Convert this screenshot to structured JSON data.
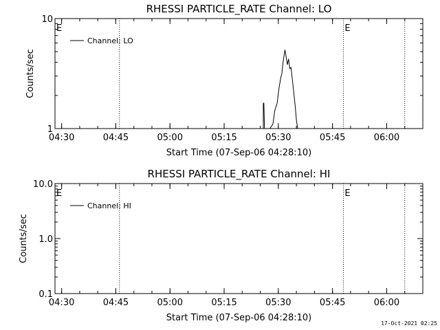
{
  "footer": {
    "timestamp": "17-Oct-2021 02:25"
  },
  "chart_data": [
    {
      "type": "line",
      "title": "RHESSI PARTICLE_RATE Channel: LO",
      "xlabel": "Start Time (07-Sep-06 04:28:10)",
      "ylabel": "Counts/sec",
      "y_scale": "log",
      "ylim": [
        1,
        10
      ],
      "x_ticks": [
        "04:30",
        "04:45",
        "05:00",
        "05:15",
        "05:30",
        "05:45",
        "06:00"
      ],
      "y_ticks": [
        "1",
        "10"
      ],
      "legend": {
        "entries": [
          "Channel: LO"
        ],
        "placement": "top-left"
      },
      "markers": [
        {
          "time": "04:46",
          "label": ""
        },
        {
          "time": "05:48",
          "label": ""
        },
        {
          "time": "06:05",
          "label": ""
        }
      ],
      "edge_labels": [
        "E",
        "E"
      ],
      "series": [
        {
          "name": "Channel: LO",
          "points": [
            [
              "05:25:50",
              1
            ],
            [
              "05:25:50",
              1.7
            ],
            [
              "05:26:00",
              1.7
            ],
            [
              "05:26:10",
              1
            ],
            [
              "05:27:40",
              1
            ],
            [
              "05:28:30",
              1.1
            ],
            [
              "05:29:00",
              1.45
            ],
            [
              "05:29:40",
              1.7
            ],
            [
              "05:30:10",
              2.3
            ],
            [
              "05:30:40",
              2.9
            ],
            [
              "05:31:00",
              3.2
            ],
            [
              "05:31:10",
              3.7
            ],
            [
              "05:31:30",
              4.4
            ],
            [
              "05:31:50",
              5.2
            ],
            [
              "05:32:10",
              4.5
            ],
            [
              "05:32:30",
              3.8
            ],
            [
              "05:32:50",
              4.3
            ],
            [
              "05:33:10",
              3.5
            ],
            [
              "05:33:30",
              3.6
            ],
            [
              "05:33:50",
              2.9
            ],
            [
              "05:34:10",
              2.3
            ],
            [
              "05:34:40",
              1.6
            ],
            [
              "05:35:00",
              1.2
            ],
            [
              "05:35:20",
              1
            ]
          ]
        }
      ]
    },
    {
      "type": "line",
      "title": "RHESSI PARTICLE_RATE Channel: HI",
      "xlabel": "Start Time (07-Sep-06 04:28:10)",
      "ylabel": "Counts/sec",
      "y_scale": "log",
      "ylim": [
        0.1,
        10
      ],
      "x_ticks": [
        "04:30",
        "04:45",
        "05:00",
        "05:15",
        "05:30",
        "05:45",
        "06:00"
      ],
      "y_ticks": [
        "0.1",
        "1.0",
        "10.0"
      ],
      "legend": {
        "entries": [
          "Channel: HI"
        ],
        "placement": "top-left"
      },
      "markers": [
        {
          "time": "04:46",
          "label": ""
        },
        {
          "time": "05:48",
          "label": ""
        },
        {
          "time": "06:05",
          "label": ""
        }
      ],
      "edge_labels": [
        "E",
        "E"
      ],
      "series": [
        {
          "name": "Channel: HI",
          "points": []
        }
      ]
    }
  ]
}
